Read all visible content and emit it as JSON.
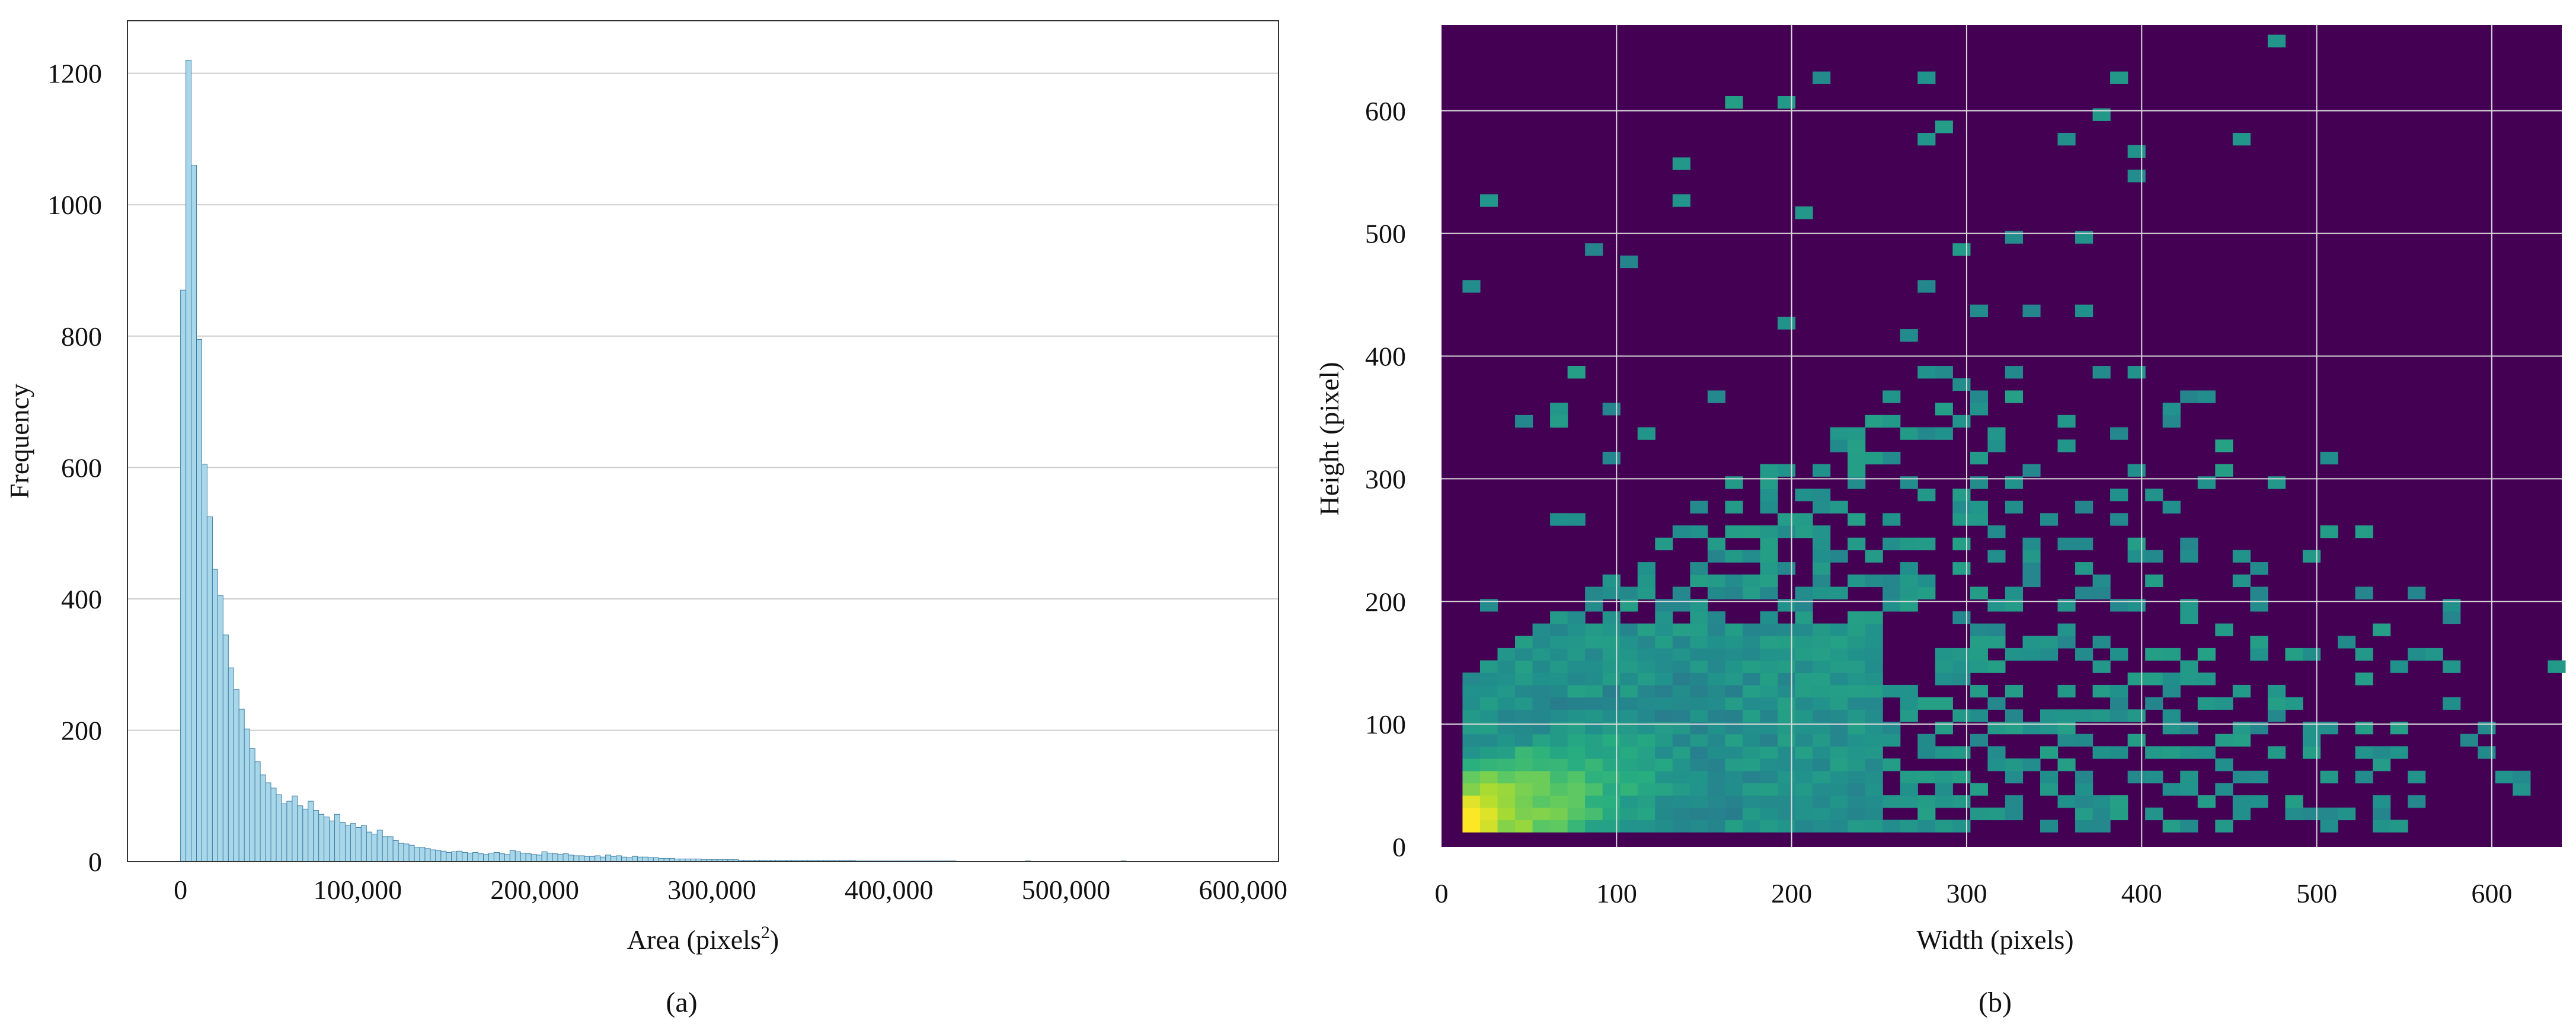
{
  "chart_data": [
    {
      "panel": "(a)",
      "type": "histogram",
      "xlabel_main": "Area (pixels",
      "xlabel_sup": "2",
      "xlabel_close": ")",
      "ylabel": "Frequency",
      "xlim": [
        -30000,
        620000
      ],
      "ylim": [
        0,
        1280
      ],
      "xticks": [
        0,
        100000,
        200000,
        300000,
        400000,
        500000,
        600000
      ],
      "xtick_labels": [
        "0",
        "100,000",
        "200,000",
        "300,000",
        "400,000",
        "500,000",
        "600,000"
      ],
      "yticks": [
        0,
        200,
        400,
        600,
        800,
        1000,
        1200
      ],
      "ytick_labels": [
        "0",
        "200",
        "400",
        "600",
        "800",
        "1000",
        "1200"
      ],
      "grid": "horizontal",
      "bin_start": 0,
      "bin_width": 3000,
      "values": [
        870,
        1220,
        1060,
        795,
        605,
        525,
        445,
        405,
        345,
        295,
        262,
        232,
        202,
        172,
        152,
        132,
        120,
        112,
        102,
        88,
        92,
        100,
        85,
        80,
        92,
        78,
        72,
        68,
        62,
        72,
        60,
        55,
        58,
        52,
        55,
        45,
        42,
        48,
        38,
        38,
        32,
        28,
        27,
        25,
        22,
        22,
        20,
        18,
        17,
        16,
        14,
        15,
        16,
        14,
        13,
        14,
        12,
        11,
        13,
        14,
        12,
        11,
        17,
        15,
        13,
        12,
        11,
        10,
        15,
        13,
        12,
        11,
        12,
        10,
        9,
        9,
        8,
        8,
        9,
        7,
        10,
        8,
        9,
        7,
        6,
        8,
        7,
        7,
        6,
        6,
        5,
        5,
        5,
        4,
        4,
        4,
        4,
        4,
        3,
        3,
        3,
        3,
        3,
        3,
        3,
        2,
        2,
        2,
        2,
        2,
        2,
        2,
        2,
        2,
        2,
        2,
        2,
        2,
        2,
        2,
        2,
        2,
        2,
        2,
        2,
        2,
        2,
        1,
        1,
        1,
        1,
        1,
        1,
        1,
        1,
        1,
        1,
        1,
        1,
        1,
        1,
        1,
        1,
        1,
        1,
        1,
        0,
        0,
        0,
        0,
        0,
        0,
        0,
        0,
        0,
        0,
        0,
        0,
        0,
        1,
        0,
        0,
        0,
        0,
        0,
        0,
        0,
        0,
        0,
        0,
        0,
        0,
        0,
        0,
        0,
        0,
        0,
        1,
        0,
        0,
        0,
        0,
        0,
        0,
        0,
        0,
        0,
        0,
        0,
        0,
        0,
        0,
        0,
        0,
        0,
        0,
        0,
        0,
        0,
        0,
        0,
        0,
        0,
        0,
        0,
        0
      ],
      "bar_color": "#a9d7ea",
      "edge_color": "#3f7fa6"
    },
    {
      "panel": "(b)",
      "type": "heatmap",
      "xlabel": "Width (pixels)",
      "ylabel": "Height (pixel)",
      "xlim": [
        0,
        640
      ],
      "ylim": [
        0,
        670
      ],
      "xticks": [
        0,
        100,
        200,
        300,
        400,
        500,
        600
      ],
      "xtick_labels": [
        "0",
        "100",
        "200",
        "300",
        "400",
        "500",
        "600"
      ],
      "yticks": [
        0,
        100,
        200,
        300,
        400,
        500,
        600
      ],
      "ytick_labels": [
        "0",
        "100",
        "200",
        "300",
        "400",
        "500",
        "600"
      ],
      "data_extent": {
        "x": [
          12,
          640
        ],
        "y": [
          12,
          660
        ]
      },
      "bin_size": 10,
      "grid": "both",
      "colormap": "viridis",
      "background": "#440154"
    }
  ],
  "figure": {
    "caption_a": "(a)",
    "caption_b": "(b)"
  }
}
